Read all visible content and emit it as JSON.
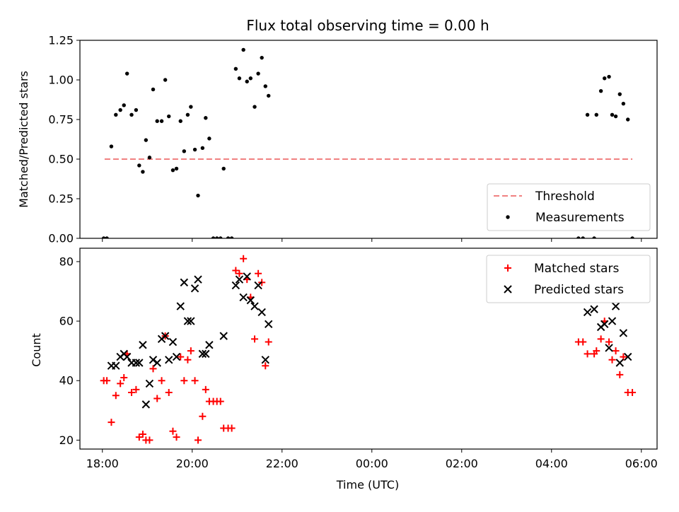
{
  "chart_data": [
    {
      "type": "scatter",
      "title": "Flux total observing time = 0.00 h",
      "xlabel": "",
      "ylabel": "Matched/Predicted stars",
      "ylim": [
        0,
        1.25
      ],
      "yticks": [
        "0.00",
        "0.25",
        "0.50",
        "0.75",
        "1.00",
        "1.25"
      ],
      "grid": false,
      "legend_position": "lower-right",
      "threshold": {
        "name": "Threshold",
        "value": 0.5,
        "x_start": 18.05,
        "x_end": 29.8,
        "color": "#f08080"
      },
      "series": [
        {
          "name": "Measurements",
          "color": "#000000",
          "points": [
            [
              18.03,
              0.0
            ],
            [
              18.1,
              0.0
            ],
            [
              18.2,
              0.58
            ],
            [
              18.3,
              0.78
            ],
            [
              18.4,
              0.81
            ],
            [
              18.48,
              0.84
            ],
            [
              18.55,
              1.04
            ],
            [
              18.65,
              0.78
            ],
            [
              18.75,
              0.81
            ],
            [
              18.82,
              0.46
            ],
            [
              18.9,
              0.42
            ],
            [
              18.97,
              0.62
            ],
            [
              19.05,
              0.51
            ],
            [
              19.13,
              0.94
            ],
            [
              19.22,
              0.74
            ],
            [
              19.32,
              0.74
            ],
            [
              19.4,
              1.0
            ],
            [
              19.48,
              0.77
            ],
            [
              19.57,
              0.43
            ],
            [
              19.65,
              0.44
            ],
            [
              19.74,
              0.74
            ],
            [
              19.82,
              0.55
            ],
            [
              19.9,
              0.78
            ],
            [
              19.97,
              0.83
            ],
            [
              20.06,
              0.56
            ],
            [
              20.13,
              0.27
            ],
            [
              20.23,
              0.57
            ],
            [
              20.3,
              0.76
            ],
            [
              20.38,
              0.63
            ],
            [
              20.47,
              0.0
            ],
            [
              20.55,
              0.0
            ],
            [
              20.63,
              0.0
            ],
            [
              20.7,
              0.44
            ],
            [
              20.8,
              0.0
            ],
            [
              20.88,
              0.0
            ],
            [
              20.97,
              1.07
            ],
            [
              21.05,
              1.01
            ],
            [
              21.14,
              1.19
            ],
            [
              21.22,
              0.99
            ],
            [
              21.3,
              1.01
            ],
            [
              21.39,
              0.83
            ],
            [
              21.47,
              1.04
            ],
            [
              21.55,
              1.14
            ],
            [
              21.63,
              0.96
            ],
            [
              21.7,
              0.9
            ],
            [
              28.6,
              0.0
            ],
            [
              28.7,
              0.0
            ],
            [
              28.8,
              0.78
            ],
            [
              28.95,
              0.0
            ],
            [
              29.0,
              0.78
            ],
            [
              29.1,
              0.93
            ],
            [
              29.18,
              1.01
            ],
            [
              29.28,
              1.02
            ],
            [
              29.35,
              0.78
            ],
            [
              29.43,
              0.77
            ],
            [
              29.52,
              0.91
            ],
            [
              29.6,
              0.85
            ],
            [
              29.7,
              0.75
            ],
            [
              29.8,
              0.0
            ]
          ]
        }
      ]
    },
    {
      "type": "scatter",
      "title": "",
      "xlabel": "Time (UTC)",
      "ylabel": "Count",
      "ylim": [
        17,
        84.5
      ],
      "yticks": [
        "20",
        "40",
        "60",
        "80"
      ],
      "xlim": [
        17.5,
        30.35
      ],
      "x_unit": "hours since 00:00 UTC on the first night (values above 24 are the following morning)",
      "xticks": [
        18,
        20,
        22,
        24,
        26,
        28,
        30
      ],
      "xtick_labels": [
        "18:00",
        "20:00",
        "22:00",
        "00:00",
        "02:00",
        "04:00",
        "06:00"
      ],
      "grid": false,
      "legend_position": "top-right",
      "series": [
        {
          "name": "Matched stars",
          "marker": "plus",
          "color": "#ff0000",
          "points": [
            [
              18.03,
              40
            ],
            [
              18.1,
              40
            ],
            [
              18.2,
              26
            ],
            [
              18.3,
              35
            ],
            [
              18.4,
              39
            ],
            [
              18.48,
              41
            ],
            [
              18.55,
              49
            ],
            [
              18.65,
              36
            ],
            [
              18.75,
              37
            ],
            [
              18.82,
              21
            ],
            [
              18.9,
              22
            ],
            [
              18.97,
              20
            ],
            [
              19.05,
              20
            ],
            [
              19.13,
              44
            ],
            [
              19.22,
              34
            ],
            [
              19.32,
              40
            ],
            [
              19.4,
              55
            ],
            [
              19.48,
              36
            ],
            [
              19.57,
              23
            ],
            [
              19.65,
              21
            ],
            [
              19.74,
              48
            ],
            [
              19.82,
              40
            ],
            [
              19.9,
              47
            ],
            [
              19.97,
              50
            ],
            [
              20.06,
              40
            ],
            [
              20.13,
              20
            ],
            [
              20.23,
              28
            ],
            [
              20.3,
              37
            ],
            [
              20.38,
              33
            ],
            [
              20.47,
              33
            ],
            [
              20.55,
              33
            ],
            [
              20.63,
              33
            ],
            [
              20.7,
              24
            ],
            [
              20.8,
              24
            ],
            [
              20.88,
              24
            ],
            [
              20.97,
              77
            ],
            [
              21.05,
              76
            ],
            [
              21.14,
              81
            ],
            [
              21.22,
              74
            ],
            [
              21.3,
              68
            ],
            [
              21.39,
              54
            ],
            [
              21.47,
              76
            ],
            [
              21.55,
              73
            ],
            [
              21.63,
              45
            ],
            [
              21.7,
              53
            ],
            [
              28.6,
              53
            ],
            [
              28.7,
              53
            ],
            [
              28.8,
              49
            ],
            [
              28.95,
              49
            ],
            [
              29.0,
              50
            ],
            [
              29.1,
              54
            ],
            [
              29.18,
              60
            ],
            [
              29.28,
              53
            ],
            [
              29.35,
              47
            ],
            [
              29.43,
              50
            ],
            [
              29.52,
              42
            ],
            [
              29.6,
              48
            ],
            [
              29.7,
              36
            ],
            [
              29.8,
              36
            ]
          ]
        },
        {
          "name": "Predicted stars",
          "marker": "x",
          "color": "#000000",
          "points": [
            [
              18.2,
              45
            ],
            [
              18.3,
              45
            ],
            [
              18.4,
              48
            ],
            [
              18.48,
              49
            ],
            [
              18.55,
              48
            ],
            [
              18.65,
              46
            ],
            [
              18.75,
              46
            ],
            [
              18.82,
              46
            ],
            [
              18.9,
              52
            ],
            [
              18.97,
              32
            ],
            [
              19.05,
              39
            ],
            [
              19.13,
              47
            ],
            [
              19.22,
              46
            ],
            [
              19.32,
              54
            ],
            [
              19.4,
              55
            ],
            [
              19.48,
              47
            ],
            [
              19.57,
              53
            ],
            [
              19.65,
              48
            ],
            [
              19.74,
              65
            ],
            [
              19.82,
              73
            ],
            [
              19.9,
              60
            ],
            [
              19.97,
              60
            ],
            [
              20.06,
              71
            ],
            [
              20.13,
              74
            ],
            [
              20.23,
              49
            ],
            [
              20.3,
              49
            ],
            [
              20.38,
              52
            ],
            [
              20.7,
              55
            ],
            [
              20.97,
              72
            ],
            [
              21.05,
              74
            ],
            [
              21.14,
              68
            ],
            [
              21.22,
              75
            ],
            [
              21.3,
              67
            ],
            [
              21.39,
              65
            ],
            [
              21.47,
              72
            ],
            [
              21.55,
              63
            ],
            [
              21.63,
              47
            ],
            [
              21.7,
              59
            ],
            [
              28.8,
              63
            ],
            [
              28.95,
              64
            ],
            [
              29.1,
              58
            ],
            [
              29.18,
              59
            ],
            [
              29.28,
              51
            ],
            [
              29.35,
              60
            ],
            [
              29.43,
              65
            ],
            [
              29.52,
              46
            ],
            [
              29.6,
              56
            ],
            [
              29.7,
              48
            ]
          ]
        }
      ]
    }
  ]
}
